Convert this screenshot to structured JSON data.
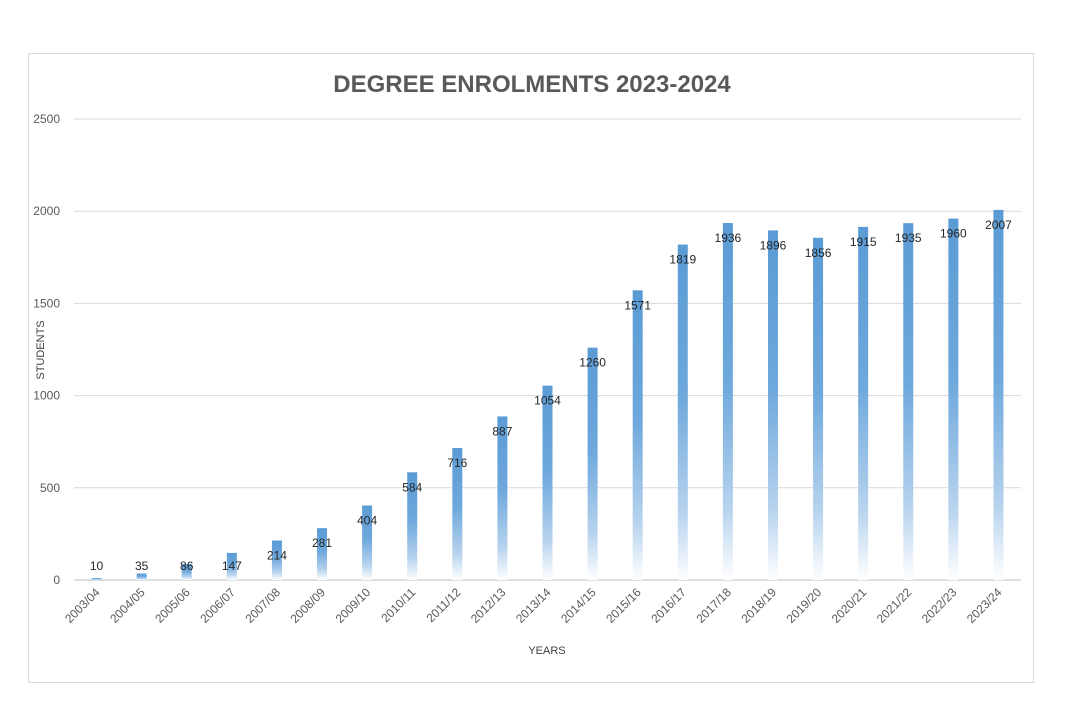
{
  "chart_data": {
    "type": "bar",
    "title": "DEGREE ENROLMENTS 2023-2024",
    "xlabel": "YEARS",
    "ylabel": "STUDENTS",
    "ylim": [
      0,
      2500
    ],
    "yticks": [
      0,
      500,
      1000,
      1500,
      2000,
      2500
    ],
    "grid": true,
    "legend": "none",
    "bar_color": "#5b9bd5",
    "categories": [
      "2003/04",
      "2004/05",
      "2005/06",
      "2006/07",
      "2007/08",
      "2008/09",
      "2009/10",
      "2010/11",
      "2011/12",
      "2012/13",
      "2013/14",
      "2014/15",
      "2015/16",
      "2016/17",
      "2017/18",
      "2018/19",
      "2019/20",
      "2020/21",
      "2021/22",
      "2022/23",
      "2023/24"
    ],
    "values": [
      10,
      35,
      86,
      147,
      214,
      281,
      404,
      584,
      716,
      887,
      1054,
      1260,
      1571,
      1819,
      1936,
      1896,
      1856,
      1915,
      1935,
      1960,
      2007
    ]
  }
}
